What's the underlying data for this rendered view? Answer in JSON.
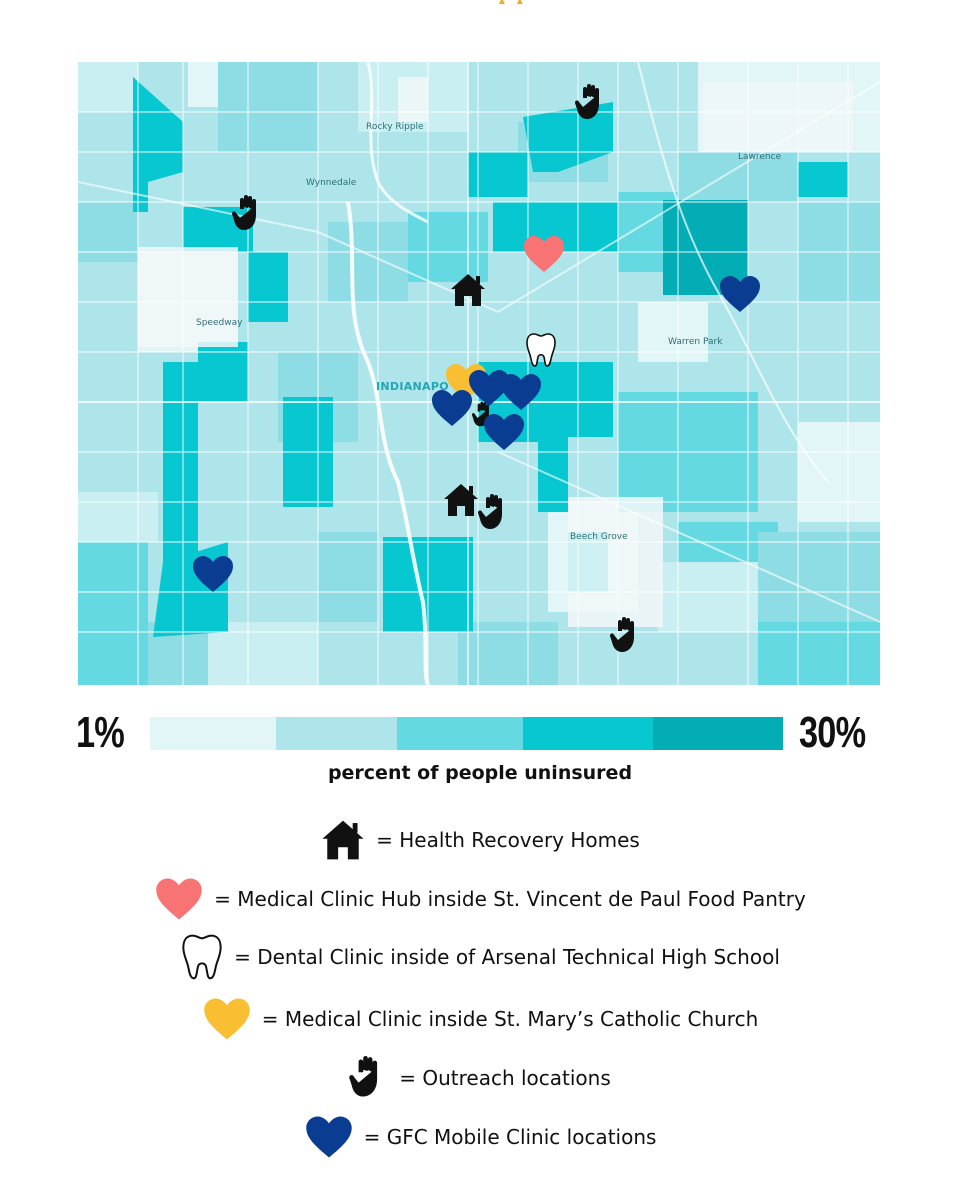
{
  "map": {
    "place_labels": [
      {
        "id": "rocky-ripple",
        "text": "Rocky Ripple"
      },
      {
        "id": "wynnedale",
        "text": "Wynnedale"
      },
      {
        "id": "lawrence",
        "text": "Lawrence"
      },
      {
        "id": "speedway",
        "text": "Speedway"
      },
      {
        "id": "warren-park",
        "text": "Warren Park"
      },
      {
        "id": "indianapolis",
        "text": "INDIANAPO"
      },
      {
        "id": "beech-grove",
        "text": "Beech Grove"
      }
    ],
    "choropleth_colors": [
      "#e2f5f7",
      "#ade5ea",
      "#65d9e2",
      "#07c7d0",
      "#02adb6"
    ],
    "marker_icons": {
      "health-recovery-home": "house-icon",
      "medical-clinic-hub": "heart-icon",
      "dental-clinic": "tooth-icon",
      "st-marys-clinic": "heart-icon",
      "outreach": "hand-icon",
      "mobile-clinic": "heart-icon"
    }
  },
  "scale": {
    "min_label": "1%",
    "max_label": "30%",
    "caption": "percent of people uninsured"
  },
  "legend": {
    "items": [
      {
        "icon": "house-icon",
        "color": "#000000",
        "text": "= Health Recovery Homes"
      },
      {
        "icon": "heart-icon",
        "color": "#f87373",
        "text": "= Medical Clinic Hub inside St. Vincent de Paul Food Pantry"
      },
      {
        "icon": "tooth-icon",
        "color": "#000000",
        "text": "= Dental Clinic inside of Arsenal Technical High School"
      },
      {
        "icon": "heart-icon",
        "color": "#f9be32",
        "text": "= Medical Clinic inside St. Mary’s Catholic Church"
      },
      {
        "icon": "hand-icon",
        "color": "#000000",
        "text": "= Outreach locations"
      },
      {
        "icon": "heart-icon",
        "color": "#0a3d91",
        "text": "= GFC Mobile Clinic locations"
      }
    ]
  }
}
